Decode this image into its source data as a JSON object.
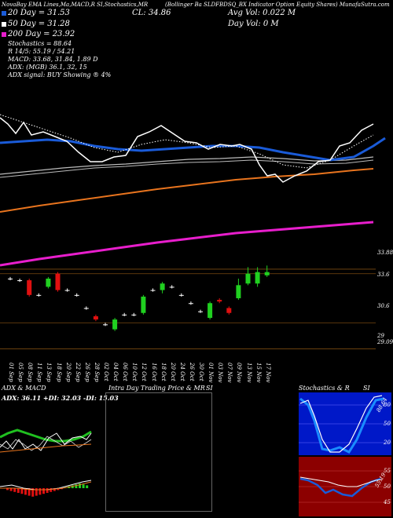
{
  "header": {
    "title_line": "NovaBay  EMA Lines,Ma,MACD,R          SI,Stochastics,MR",
    "title_right": "(Bollinger Ba                    SLDFBDSQ_BX          Indicator Option Equity Shares) MunafaSutra.com",
    "ma20": "20  Day = 31.53",
    "ma50": "50  Day = 31.28",
    "ma200": "200  Day = 23.92",
    "cl": "CL: 34.86",
    "avg_vol": "Avg Vol: 0.022  M",
    "day_vol": "Day Vol: 0   M",
    "stochastics": "Stochastics = 88.64",
    "r_line": "R               14/5: 55.19 / 54.21",
    "macd": "MACD: 33.68, 31.84, 1.89 D",
    "adx": "ADX:                          (MGB) 36.1,  32,  15",
    "adx_signal": "ADX  signal:                                BUY Showing ® 4%",
    "colors": {
      "ma20": "#1a5bd8",
      "ma50": "#ffffff",
      "ma200": "#e81ecc"
    }
  },
  "price_labels": [
    "33.88",
    "33.6",
    "30.6",
    "29",
    "29.09"
  ],
  "date_labels": [
    "01 Sep",
    "05 Sep",
    "08 Sep",
    "11 Sep",
    "13 Sep",
    "18 Sep",
    "20 Sep",
    "22 Sep",
    "26 Sep",
    "28 Sep",
    "02 Oct",
    "04 Oct",
    "06 Oct",
    "10 Oct",
    "12 Oct",
    "16 Oct",
    "18 Oct",
    "20 Oct",
    "24 Oct",
    "26 Oct",
    "30 Oct",
    "01 Nov",
    "03 Nov",
    "07 Nov",
    "09 Nov",
    "13 Nov",
    "15 Nov",
    "17 Nov"
  ],
  "panels": {
    "adx_macd_title": "ADX  & MACD",
    "adx_values": "ADX: 36.11  +DI: 32.03  -DI: 15.03",
    "intraday_title": "Intra  Day Trading Price  & MR",
    "intraday_si": "SI",
    "stoch_title": "Stochastics & R",
    "stoch_si": "SI",
    "stoch_top_ticks": [
      "80",
      "50",
      "20"
    ],
    "stoch_bottom_ticks": [
      "55",
      "50",
      "45"
    ],
    "stoch_value": "88.64",
    "rsi_value": "55.19"
  },
  "chart_data": {
    "type": "candlestick",
    "title": "NovaBay EMA Lines,Ma,MACD,RSI,Stochastics,MRSI",
    "x_categories": [
      "01 Sep",
      "05 Sep",
      "08 Sep",
      "11 Sep",
      "13 Sep",
      "18 Sep",
      "20 Sep",
      "22 Sep",
      "26 Sep",
      "28 Sep",
      "02 Oct",
      "04 Oct",
      "06 Oct",
      "10 Oct",
      "12 Oct",
      "16 Oct",
      "18 Oct",
      "20 Oct",
      "24 Oct",
      "26 Oct",
      "30 Oct",
      "01 Nov",
      "03 Nov",
      "07 Nov",
      "09 Nov",
      "13 Nov",
      "15 Nov",
      "17 Nov"
    ],
    "ylim": [
      28.5,
      34.5
    ],
    "candles": [
      {
        "o": 33.3,
        "c": 33.3,
        "h": 33.4,
        "l": 33.2
      },
      {
        "o": 33.2,
        "c": 33.2,
        "h": 33.3,
        "l": 33.1
      },
      {
        "o": 33.2,
        "c": 32.3,
        "h": 33.3,
        "l": 32.2
      },
      {
        "o": 32.3,
        "c": 32.3,
        "h": 32.4,
        "l": 32.2
      },
      {
        "o": 32.8,
        "c": 33.3,
        "h": 33.4,
        "l": 32.7
      },
      {
        "o": 33.6,
        "c": 32.6,
        "h": 33.7,
        "l": 32.5
      },
      {
        "o": 32.6,
        "c": 32.6,
        "h": 32.7,
        "l": 32.5
      },
      {
        "o": 32.3,
        "c": 32.3,
        "h": 32.4,
        "l": 32.2
      },
      {
        "o": 31.5,
        "c": 31.5,
        "h": 31.6,
        "l": 31.4
      },
      {
        "o": 31.0,
        "c": 30.8,
        "h": 31.1,
        "l": 30.7
      },
      {
        "o": 30.5,
        "c": 30.5,
        "h": 30.6,
        "l": 30.4
      },
      {
        "o": 30.2,
        "c": 30.8,
        "h": 30.9,
        "l": 30.1
      },
      {
        "o": 31.1,
        "c": 31.1,
        "h": 31.2,
        "l": 31.0
      },
      {
        "o": 31.1,
        "c": 31.1,
        "h": 31.2,
        "l": 31.0
      },
      {
        "o": 31.2,
        "c": 32.2,
        "h": 32.3,
        "l": 31.1
      },
      {
        "o": 32.6,
        "c": 32.6,
        "h": 32.7,
        "l": 32.5
      },
      {
        "o": 32.6,
        "c": 33.0,
        "h": 33.1,
        "l": 32.4
      },
      {
        "o": 32.8,
        "c": 32.8,
        "h": 32.9,
        "l": 32.7
      },
      {
        "o": 32.3,
        "c": 32.3,
        "h": 32.4,
        "l": 32.2
      },
      {
        "o": 31.8,
        "c": 31.8,
        "h": 31.9,
        "l": 31.7
      },
      {
        "o": 31.3,
        "c": 31.3,
        "h": 31.4,
        "l": 31.2
      },
      {
        "o": 30.9,
        "c": 31.8,
        "h": 31.9,
        "l": 30.8
      },
      {
        "o": 32.0,
        "c": 31.9,
        "h": 32.1,
        "l": 31.8
      },
      {
        "o": 31.5,
        "c": 31.2,
        "h": 31.6,
        "l": 31.1
      },
      {
        "o": 32.1,
        "c": 32.9,
        "h": 33.3,
        "l": 32.0
      },
      {
        "o": 33.0,
        "c": 33.6,
        "h": 34.0,
        "l": 32.9
      },
      {
        "o": 33.0,
        "c": 33.7,
        "h": 34.0,
        "l": 32.8
      },
      {
        "o": 33.5,
        "c": 33.7,
        "h": 34.1,
        "l": 33.4
      }
    ]
  }
}
